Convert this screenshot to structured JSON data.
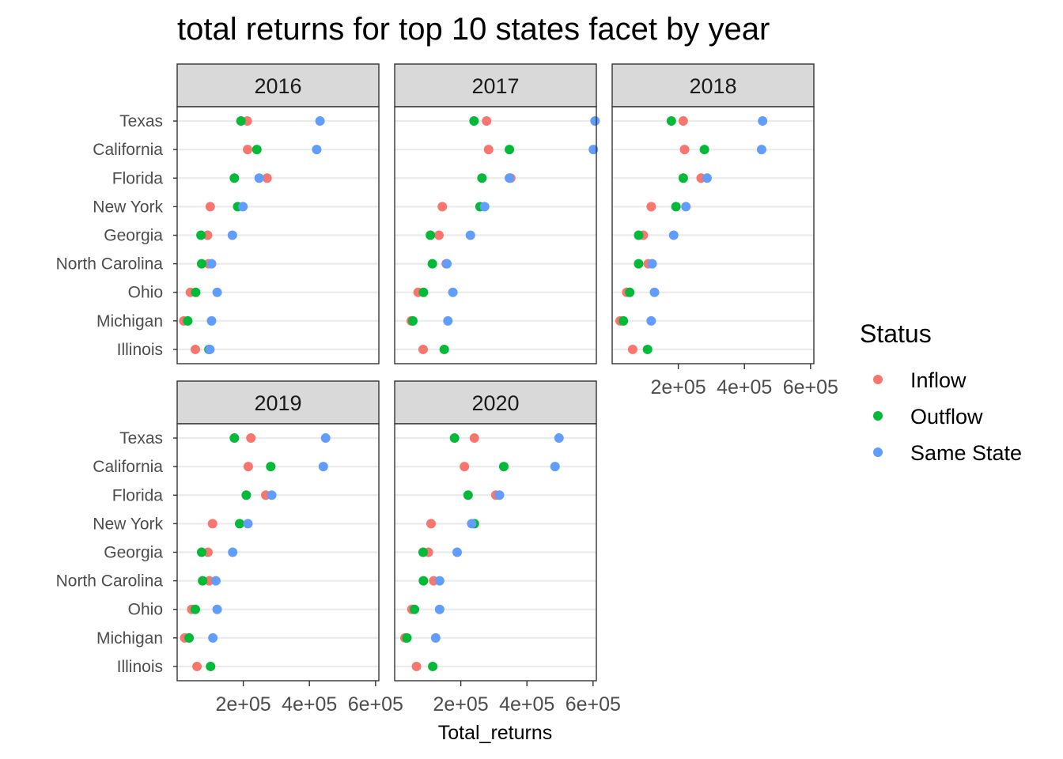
{
  "chart_data": {
    "type": "scatter",
    "title": "total returns for top 10 states facet by year",
    "xlabel": "Total_returns",
    "ylabel": "",
    "xlim": [
      0,
      610000
    ],
    "x_ticks": [
      200000,
      400000,
      600000
    ],
    "x_tick_labels": [
      "2e+05",
      "4e+05",
      "6e+05"
    ],
    "categories": [
      "Texas",
      "California",
      "Florida",
      "New York",
      "Georgia",
      "North Carolina",
      "Ohio",
      "Michigan",
      "Illinois"
    ],
    "grid": true,
    "legend": {
      "title": "Status",
      "placement": "right",
      "items": [
        {
          "name": "Inflow",
          "color": "#F8766D"
        },
        {
          "name": "Outflow",
          "color": "#00BA38"
        },
        {
          "name": "Same State",
          "color": "#619CFF"
        }
      ]
    },
    "facets": [
      {
        "label": "2016",
        "series": [
          {
            "name": "Inflow",
            "values": [
              212000,
              213000,
              272000,
              100000,
              92000,
              95000,
              40000,
              20000,
              55000
            ]
          },
          {
            "name": "Outflow",
            "values": [
              193000,
              241000,
              173000,
              183000,
              72000,
              74000,
              56000,
              32000,
              96000
            ]
          },
          {
            "name": "Same State",
            "values": [
              432000,
              422000,
              248000,
              199000,
              167000,
              104000,
              121000,
              104000,
              99000
            ]
          }
        ]
      },
      {
        "label": "2017",
        "series": [
          {
            "name": "Inflow",
            "values": [
              278000,
              284000,
              351000,
              144000,
              134000,
              156000,
              71000,
              50000,
              86000
            ]
          },
          {
            "name": "Outflow",
            "values": [
              240000,
              347000,
              264000,
              258000,
              108000,
              114000,
              87000,
              55000,
              150000
            ]
          },
          {
            "name": "Same State",
            "values": [
              606000,
              601000,
              347000,
              272000,
              229000,
              158000,
              176000,
              161000,
              null
            ]
          }
        ]
      },
      {
        "label": "2018",
        "series": [
          {
            "name": "Inflow",
            "values": [
              215000,
              219000,
              269000,
              118000,
              94000,
              109000,
              44000,
              24000,
              62000
            ]
          },
          {
            "name": "Outflow",
            "values": [
              179000,
              279000,
              215000,
              193000,
              80000,
              80000,
              53000,
              34000,
              107000
            ]
          },
          {
            "name": "Same State",
            "values": [
              455000,
              452000,
              287000,
              223000,
              186000,
              121000,
              128000,
              118000,
              null
            ]
          }
        ]
      },
      {
        "label": "2019",
        "series": [
          {
            "name": "Inflow",
            "values": [
              223000,
              215000,
              268000,
              107000,
              93000,
              97000,
              44000,
              23000,
              60000
            ]
          },
          {
            "name": "Outflow",
            "values": [
              173000,
              283000,
              209000,
              189000,
              74000,
              77000,
              55000,
              36000,
              101000
            ]
          },
          {
            "name": "Same State",
            "values": [
              449000,
              442000,
              286000,
              214000,
              168000,
              117000,
              121000,
              108000,
              null
            ]
          }
        ]
      },
      {
        "label": "2020",
        "series": [
          {
            "name": "Inflow",
            "values": [
              241000,
              211000,
              306000,
              110000,
              102000,
              118000,
              52000,
              31000,
              66000
            ]
          },
          {
            "name": "Outflow",
            "values": [
              181000,
              330000,
              222000,
              241000,
              86000,
              87000,
              60000,
              37000,
              115000
            ]
          },
          {
            "name": "Same State",
            "values": [
              497000,
              485000,
              317000,
              233000,
              189000,
              136000,
              136000,
              124000,
              null
            ]
          }
        ]
      }
    ]
  }
}
